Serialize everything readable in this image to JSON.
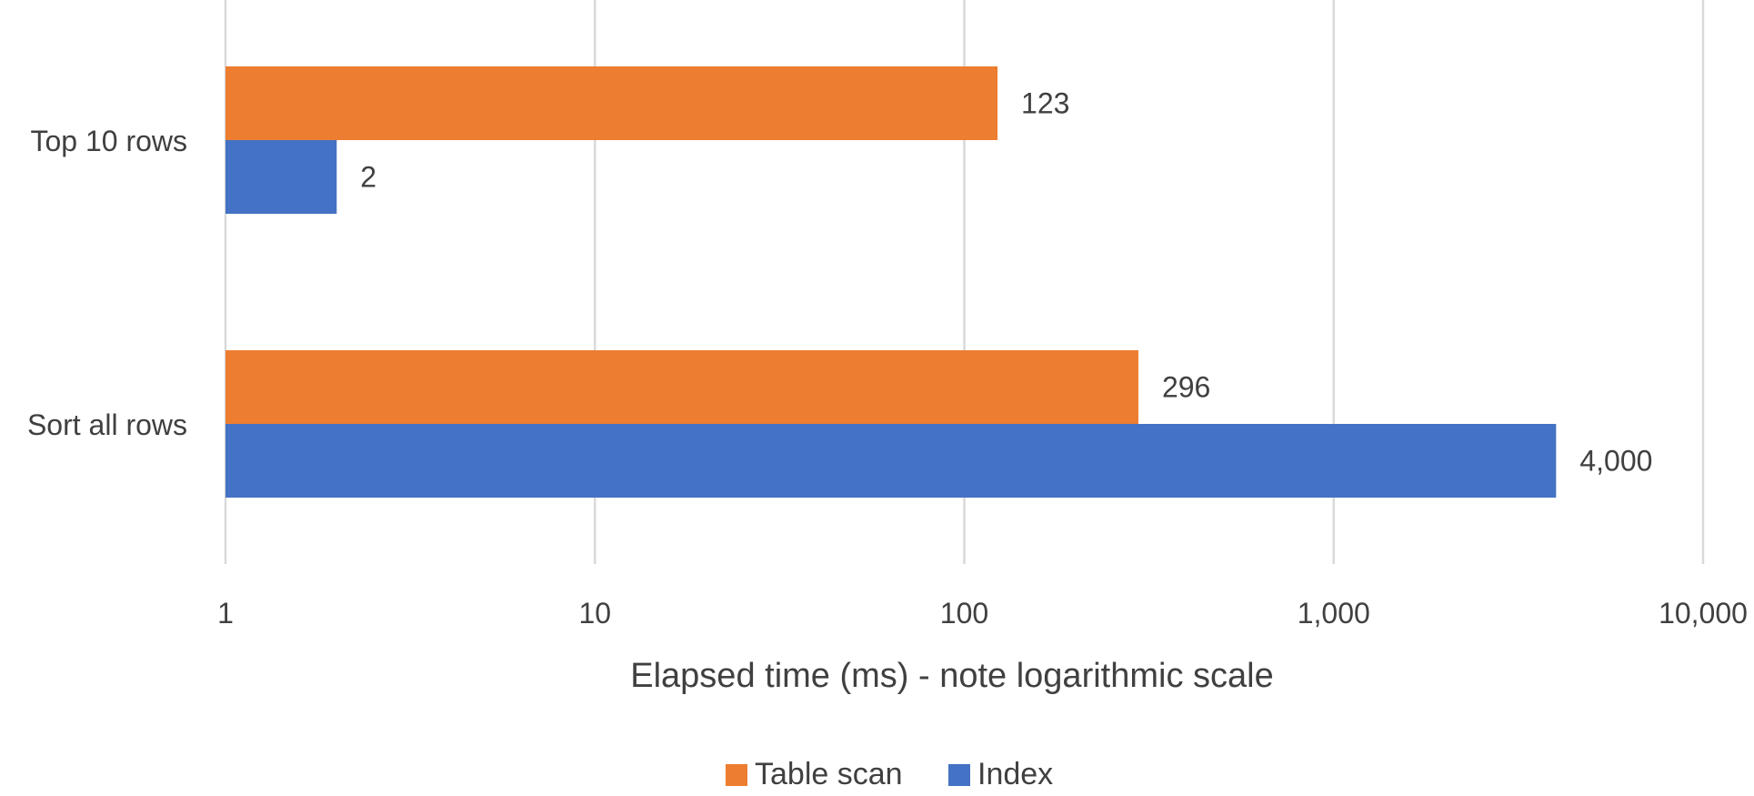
{
  "chart_data": {
    "type": "bar",
    "orientation": "horizontal",
    "x_scale": "log",
    "xlim": [
      1,
      10000
    ],
    "x_ticks": [
      1,
      10,
      100,
      1000,
      10000
    ],
    "x_tick_labels": [
      "1",
      "10",
      "100",
      "1,000",
      "10,000"
    ],
    "xlabel": "Elapsed time (ms) - note logarithmic scale",
    "ylabel": "",
    "title": "",
    "grid": "vertical",
    "legend_position": "bottom",
    "categories": [
      "Top 10 rows",
      "Sort all rows"
    ],
    "series": [
      {
        "name": "Table scan",
        "color": "#ed7d31",
        "values": [
          123,
          296
        ],
        "labels": [
          "123",
          "296"
        ]
      },
      {
        "name": "Index",
        "color": "#4472c4",
        "values": [
          2,
          4000
        ],
        "labels": [
          "2",
          "4,000"
        ]
      }
    ]
  }
}
